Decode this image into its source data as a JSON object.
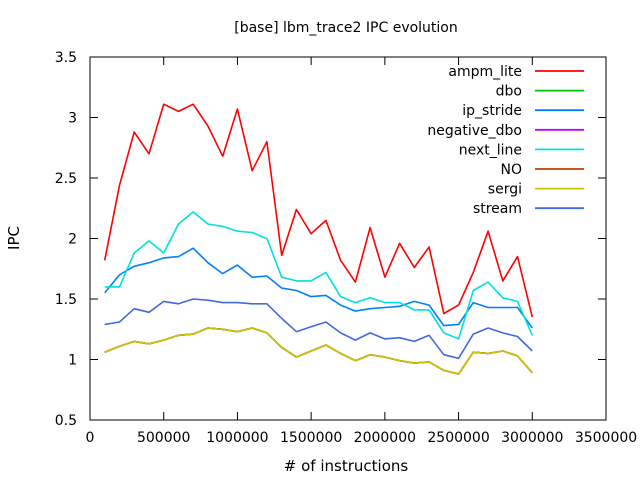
{
  "chart_data": {
    "type": "line",
    "title": "[base] lbm_trace2 IPC evolution",
    "xlabel": "# of instructions",
    "ylabel": "IPC",
    "xlim": [
      0,
      3500000
    ],
    "ylim": [
      0.5,
      3.5
    ],
    "xticks": [
      0,
      500000,
      1000000,
      1500000,
      2000000,
      2500000,
      3000000,
      3500000
    ],
    "xtick_labels": [
      "0",
      "500000",
      "1000000",
      "1500000",
      "2000000",
      "2500000",
      "3000000",
      "3500000"
    ],
    "yticks": [
      0.5,
      1,
      1.5,
      2,
      2.5,
      3,
      3.5
    ],
    "ytick_labels": [
      "0.5",
      "1",
      "1.5",
      "2",
      "2.5",
      "3",
      "3.5"
    ],
    "grid": false,
    "legend_position": "top-right",
    "x": [
      100000,
      200000,
      300000,
      400000,
      500000,
      600000,
      700000,
      800000,
      900000,
      1000000,
      1100000,
      1200000,
      1300000,
      1400000,
      1500000,
      1600000,
      1700000,
      1800000,
      1900000,
      2000000,
      2100000,
      2200000,
      2300000,
      2400000,
      2500000,
      2600000,
      2700000,
      2800000,
      2900000,
      3000000
    ],
    "series": [
      {
        "name": "ampm_lite",
        "color": "#ff0000",
        "values": [
          1.82,
          2.44,
          2.88,
          2.7,
          3.11,
          3.05,
          3.11,
          2.93,
          2.68,
          3.07,
          2.56,
          2.8,
          1.86,
          2.24,
          2.04,
          2.15,
          1.82,
          1.64,
          2.09,
          1.68,
          1.96,
          1.76,
          1.93,
          1.38,
          1.45,
          1.72,
          2.06,
          1.65,
          1.85,
          1.35
        ]
      },
      {
        "name": "dbo",
        "color": "#00c000",
        "values": [
          1.06,
          1.11,
          1.15,
          1.13,
          1.16,
          1.2,
          1.21,
          1.26,
          1.25,
          1.23,
          1.26,
          1.22,
          1.1,
          1.02,
          1.07,
          1.12,
          1.05,
          0.99,
          1.04,
          1.02,
          0.99,
          0.97,
          0.98,
          0.91,
          0.88,
          1.06,
          1.05,
          1.07,
          1.03,
          0.89
        ]
      },
      {
        "name": "ip_stride",
        "color": "#0080ff",
        "values": [
          1.55,
          1.7,
          1.77,
          1.8,
          1.84,
          1.85,
          1.92,
          1.8,
          1.71,
          1.78,
          1.68,
          1.69,
          1.59,
          1.57,
          1.52,
          1.53,
          1.45,
          1.4,
          1.42,
          1.43,
          1.44,
          1.48,
          1.45,
          1.28,
          1.29,
          1.47,
          1.43,
          1.43,
          1.43,
          1.26
        ]
      },
      {
        "name": "negative_dbo",
        "color": "#c000ff",
        "values": [
          1.06,
          1.11,
          1.15,
          1.13,
          1.16,
          1.2,
          1.21,
          1.26,
          1.25,
          1.23,
          1.26,
          1.22,
          1.1,
          1.02,
          1.07,
          1.12,
          1.05,
          0.99,
          1.04,
          1.02,
          0.99,
          0.97,
          0.98,
          0.91,
          0.88,
          1.06,
          1.05,
          1.07,
          1.03,
          0.89
        ]
      },
      {
        "name": "next_line",
        "color": "#00e0e0",
        "values": [
          1.6,
          1.6,
          1.88,
          1.98,
          1.88,
          2.12,
          2.22,
          2.12,
          2.1,
          2.06,
          2.05,
          2.0,
          1.68,
          1.65,
          1.65,
          1.72,
          1.52,
          1.47,
          1.51,
          1.47,
          1.47,
          1.41,
          1.41,
          1.22,
          1.17,
          1.57,
          1.64,
          1.51,
          1.48,
          1.2
        ]
      },
      {
        "name": "NO",
        "color": "#c04000",
        "values": [
          1.06,
          1.11,
          1.15,
          1.13,
          1.16,
          1.2,
          1.21,
          1.26,
          1.25,
          1.23,
          1.26,
          1.22,
          1.1,
          1.02,
          1.07,
          1.12,
          1.05,
          0.99,
          1.04,
          1.02,
          0.99,
          0.97,
          0.98,
          0.91,
          0.88,
          1.06,
          1.05,
          1.07,
          1.03,
          0.89
        ]
      },
      {
        "name": "sergi",
        "color": "#c8c800",
        "values": [
          1.06,
          1.11,
          1.15,
          1.13,
          1.16,
          1.2,
          1.21,
          1.26,
          1.25,
          1.23,
          1.26,
          1.22,
          1.1,
          1.02,
          1.07,
          1.12,
          1.05,
          0.99,
          1.04,
          1.02,
          0.99,
          0.97,
          0.98,
          0.91,
          0.88,
          1.06,
          1.05,
          1.07,
          1.03,
          0.89
        ]
      },
      {
        "name": "stream",
        "color": "#4169e1",
        "values": [
          1.29,
          1.31,
          1.42,
          1.39,
          1.48,
          1.46,
          1.5,
          1.49,
          1.47,
          1.47,
          1.46,
          1.46,
          1.34,
          1.23,
          1.27,
          1.31,
          1.22,
          1.16,
          1.22,
          1.17,
          1.18,
          1.15,
          1.2,
          1.04,
          1.01,
          1.21,
          1.26,
          1.22,
          1.19,
          1.07
        ]
      }
    ]
  }
}
